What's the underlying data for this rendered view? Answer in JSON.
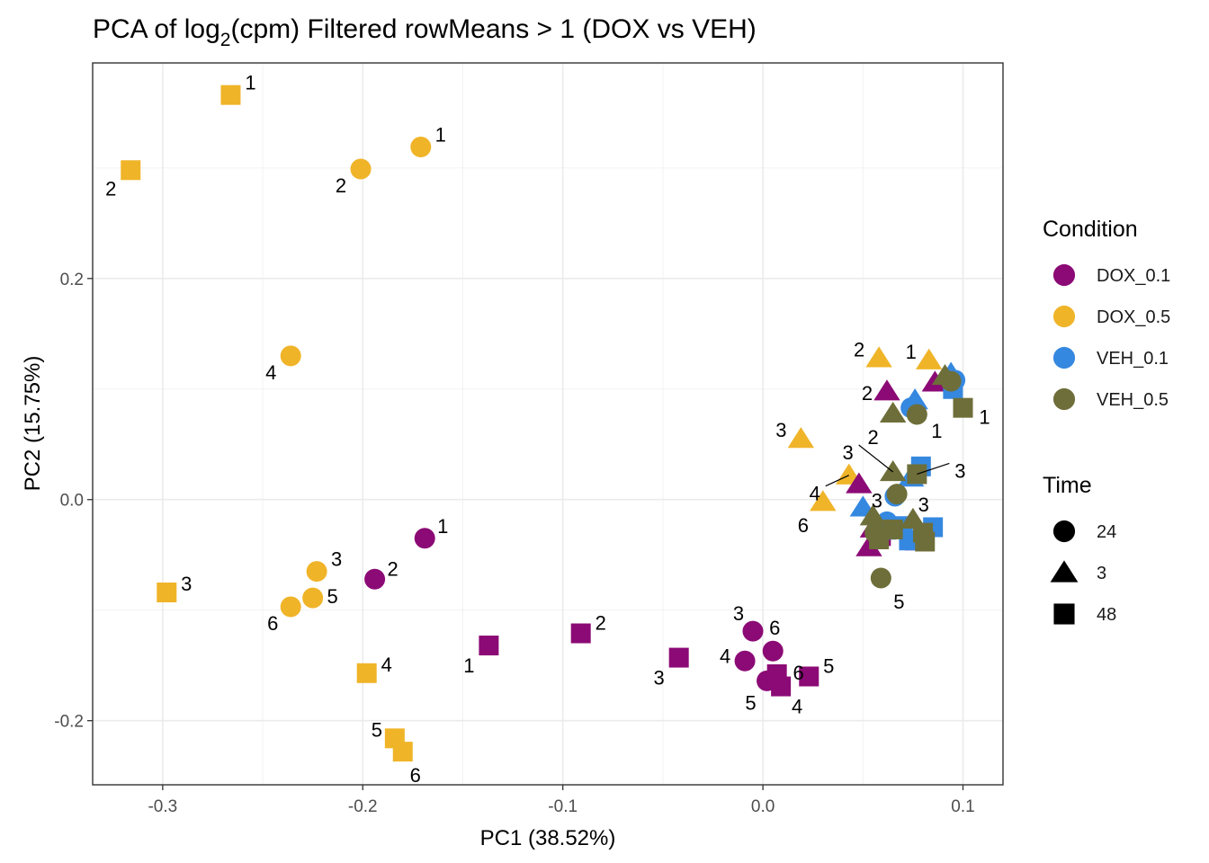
{
  "chart_data": {
    "type": "scatter",
    "title_main": "PCA of log",
    "title_sub": "2",
    "title_rest": "(cpm) Filtered rowMeans > 1 (DOX vs VEH)",
    "xlabel": "PC1 (38.52%)",
    "ylabel": "PC2 (15.75%)",
    "xlim": [
      -0.335,
      0.12
    ],
    "ylim": [
      -0.258,
      0.395
    ],
    "xticks": [
      -0.3,
      -0.2,
      -0.1,
      0.0,
      0.1
    ],
    "xtick_labels": [
      "-0.3",
      "-0.2",
      "-0.1",
      "0.0",
      "0.1"
    ],
    "yticks": [
      -0.2,
      0.0,
      0.2
    ],
    "ytick_labels": [
      "-0.2",
      "0.0",
      "0.2"
    ],
    "grid": true,
    "legend_placement": "right",
    "colors": {
      "DOX_0.1": "#8B0A75",
      "DOX_0.5": "#F0B429",
      "VEH_0.1": "#3588E0",
      "VEH_0.5": "#6E6E3A"
    },
    "legend": {
      "condition_title": "Condition",
      "conditions": [
        "DOX_0.1",
        "DOX_0.5",
        "VEH_0.1",
        "VEH_0.5"
      ],
      "time_title": "Time",
      "times": [
        {
          "label": "24",
          "shape": "circle"
        },
        {
          "label": "3",
          "shape": "triangle"
        },
        {
          "label": "48",
          "shape": "square"
        }
      ]
    },
    "points": [
      {
        "x": -0.266,
        "y": 0.366,
        "cond": "DOX_0.5",
        "time": "48",
        "label": "1",
        "ldx": 22,
        "ldy": -14
      },
      {
        "x": -0.316,
        "y": 0.298,
        "cond": "DOX_0.5",
        "time": "48",
        "label": "2",
        "ldx": -22,
        "ldy": 20
      },
      {
        "x": -0.171,
        "y": 0.319,
        "cond": "DOX_0.5",
        "time": "24",
        "label": "1",
        "ldx": 22,
        "ldy": -14
      },
      {
        "x": -0.201,
        "y": 0.299,
        "cond": "DOX_0.5",
        "time": "24",
        "label": "2",
        "ldx": -22,
        "ldy": 18
      },
      {
        "x": -0.236,
        "y": 0.13,
        "cond": "DOX_0.5",
        "time": "24",
        "label": "4",
        "ldx": -22,
        "ldy": 18
      },
      {
        "x": -0.223,
        "y": -0.065,
        "cond": "DOX_0.5",
        "time": "24",
        "label": "3",
        "ldx": 22,
        "ldy": -14
      },
      {
        "x": -0.225,
        "y": -0.089,
        "cond": "DOX_0.5",
        "time": "24",
        "label": "5",
        "ldx": 22,
        "ldy": -2
      },
      {
        "x": -0.236,
        "y": -0.097,
        "cond": "DOX_0.5",
        "time": "24",
        "label": "6",
        "ldx": -20,
        "ldy": 18
      },
      {
        "x": -0.298,
        "y": -0.084,
        "cond": "DOX_0.5",
        "time": "48",
        "label": "3",
        "ldx": 22,
        "ldy": -10
      },
      {
        "x": -0.198,
        "y": -0.157,
        "cond": "DOX_0.5",
        "time": "48",
        "label": "4",
        "ldx": 22,
        "ldy": -10
      },
      {
        "x": -0.184,
        "y": -0.216,
        "cond": "DOX_0.5",
        "time": "48",
        "label": "5",
        "ldx": -20,
        "ldy": -10
      },
      {
        "x": -0.18,
        "y": -0.228,
        "cond": "DOX_0.5",
        "time": "48",
        "label": "6",
        "ldx": 14,
        "ldy": 26
      },
      {
        "x": 0.058,
        "y": 0.128,
        "cond": "DOX_0.5",
        "time": "3",
        "label": "2",
        "ldx": -22,
        "ldy": -10
      },
      {
        "x": 0.083,
        "y": 0.126,
        "cond": "DOX_0.5",
        "time": "3",
        "label": "1",
        "ldx": -20,
        "ldy": -10
      },
      {
        "x": 0.019,
        "y": 0.055,
        "cond": "DOX_0.5",
        "time": "3",
        "label": "3",
        "ldx": -22,
        "ldy": -10
      },
      {
        "x": 0.043,
        "y": 0.022,
        "cond": "DOX_0.5",
        "time": "3",
        "label": "4",
        "ldx": -38,
        "ldy": 20
      },
      {
        "x": 0.03,
        "y": -0.002,
        "cond": "DOX_0.5",
        "time": "3",
        "label": "6",
        "ldx": -22,
        "ldy": 26
      },
      {
        "x": -0.169,
        "y": -0.035,
        "cond": "DOX_0.1",
        "time": "24",
        "label": "1",
        "ldx": 20,
        "ldy": -14
      },
      {
        "x": -0.194,
        "y": -0.072,
        "cond": "DOX_0.1",
        "time": "24",
        "label": "2",
        "ldx": 20,
        "ldy": -12
      },
      {
        "x": -0.137,
        "y": -0.132,
        "cond": "DOX_0.1",
        "time": "48",
        "label": "1",
        "ldx": -22,
        "ldy": 22
      },
      {
        "x": -0.091,
        "y": -0.121,
        "cond": "DOX_0.1",
        "time": "48",
        "label": "2",
        "ldx": 22,
        "ldy": -12
      },
      {
        "x": -0.042,
        "y": -0.143,
        "cond": "DOX_0.1",
        "time": "48",
        "label": "3",
        "ldx": -22,
        "ldy": 22
      },
      {
        "x": -0.005,
        "y": -0.119,
        "cond": "DOX_0.1",
        "time": "24",
        "label": "3",
        "ldx": -16,
        "ldy": -20
      },
      {
        "x": 0.005,
        "y": -0.137,
        "cond": "DOX_0.1",
        "time": "24",
        "label": "6",
        "ldx": 2,
        "ldy": -26
      },
      {
        "x": -0.009,
        "y": -0.146,
        "cond": "DOX_0.1",
        "time": "24",
        "label": "4",
        "ldx": -22,
        "ldy": -6
      },
      {
        "x": 0.002,
        "y": -0.164,
        "cond": "DOX_0.1",
        "time": "24",
        "label": "5",
        "ldx": -18,
        "ldy": 24
      },
      {
        "x": 0.007,
        "y": -0.158,
        "cond": "DOX_0.1",
        "time": "48",
        "label": "6",
        "ldx": 24,
        "ldy": -2
      },
      {
        "x": 0.023,
        "y": -0.16,
        "cond": "DOX_0.1",
        "time": "48",
        "label": "5",
        "ldx": 22,
        "ldy": -12
      },
      {
        "x": 0.009,
        "y": -0.169,
        "cond": "DOX_0.1",
        "time": "48",
        "label": "4",
        "ldx": 18,
        "ldy": 22
      },
      {
        "x": 0.062,
        "y": 0.098,
        "cond": "DOX_0.1",
        "time": "3",
        "label": "2",
        "ldx": -22,
        "ldy": 2
      },
      {
        "x": 0.048,
        "y": 0.014,
        "cond": "DOX_0.1",
        "time": "3",
        "label": "3",
        "ldx": 20,
        "ldy": 18
      },
      {
        "x": 0.086,
        "y": 0.106,
        "cond": "DOX_0.1",
        "time": "3",
        "label": "",
        "ldx": 0,
        "ldy": 0
      },
      {
        "x": 0.055,
        "y": -0.026,
        "cond": "DOX_0.1",
        "time": "3",
        "label": "",
        "ldx": 0,
        "ldy": 0
      },
      {
        "x": 0.053,
        "y": -0.043,
        "cond": "DOX_0.1",
        "time": "3",
        "label": "",
        "ldx": 0,
        "ldy": 0
      },
      {
        "x": 0.059,
        "y": -0.033,
        "cond": "DOX_0.1",
        "time": "48",
        "label": "",
        "ldx": 0,
        "ldy": 0
      },
      {
        "x": 0.076,
        "y": -0.037,
        "cond": "DOX_0.1",
        "time": "48",
        "label": "",
        "ldx": 0,
        "ldy": 0
      },
      {
        "x": 0.096,
        "y": 0.108,
        "cond": "VEH_0.1",
        "time": "24",
        "label": "",
        "ldx": 0,
        "ldy": 0
      },
      {
        "x": 0.094,
        "y": 0.114,
        "cond": "VEH_0.1",
        "time": "3",
        "label": "",
        "ldx": 0,
        "ldy": 0
      },
      {
        "x": 0.095,
        "y": 0.1,
        "cond": "VEH_0.1",
        "time": "48",
        "label": "",
        "ldx": 0,
        "ldy": 0
      },
      {
        "x": 0.076,
        "y": 0.09,
        "cond": "VEH_0.1",
        "time": "3",
        "label": "",
        "ldx": 0,
        "ldy": 0
      },
      {
        "x": 0.074,
        "y": 0.083,
        "cond": "VEH_0.1",
        "time": "24",
        "label": "",
        "ldx": 0,
        "ldy": 0
      },
      {
        "x": 0.079,
        "y": 0.03,
        "cond": "VEH_0.1",
        "time": "48",
        "label": "",
        "ldx": 0,
        "ldy": 0
      },
      {
        "x": 0.074,
        "y": 0.02,
        "cond": "VEH_0.1",
        "time": "3",
        "label": "3",
        "ldx": 14,
        "ldy": 30
      },
      {
        "x": 0.066,
        "y": 0.003,
        "cond": "VEH_0.1",
        "time": "24",
        "label": "",
        "ldx": 0,
        "ldy": 0
      },
      {
        "x": 0.05,
        "y": -0.007,
        "cond": "VEH_0.1",
        "time": "3",
        "label": "",
        "ldx": 0,
        "ldy": 0
      },
      {
        "x": 0.062,
        "y": -0.02,
        "cond": "VEH_0.1",
        "time": "24",
        "label": "",
        "ldx": 0,
        "ldy": 0
      },
      {
        "x": 0.07,
        "y": -0.024,
        "cond": "VEH_0.1",
        "time": "48",
        "label": "",
        "ldx": 0,
        "ldy": 0
      },
      {
        "x": 0.085,
        "y": -0.025,
        "cond": "VEH_0.1",
        "time": "48",
        "label": "",
        "ldx": 0,
        "ldy": 0
      },
      {
        "x": 0.073,
        "y": -0.037,
        "cond": "VEH_0.1",
        "time": "48",
        "label": "",
        "ldx": 0,
        "ldy": 0
      },
      {
        "x": 0.06,
        "y": -0.028,
        "cond": "VEH_0.1",
        "time": "3",
        "label": "",
        "ldx": 0,
        "ldy": 0
      },
      {
        "x": 0.091,
        "y": 0.112,
        "cond": "VEH_0.5",
        "time": "3",
        "label": "",
        "ldx": 0,
        "ldy": 0
      },
      {
        "x": 0.094,
        "y": 0.107,
        "cond": "VEH_0.5",
        "time": "24",
        "label": "",
        "ldx": 0,
        "ldy": 0
      },
      {
        "x": 0.1,
        "y": 0.083,
        "cond": "VEH_0.5",
        "time": "48",
        "label": "1",
        "ldx": 24,
        "ldy": 10
      },
      {
        "x": 0.077,
        "y": 0.077,
        "cond": "VEH_0.5",
        "time": "24",
        "label": "1",
        "ldx": 22,
        "ldy": 18
      },
      {
        "x": 0.065,
        "y": 0.078,
        "cond": "VEH_0.5",
        "time": "3",
        "label": "2",
        "ldx": -22,
        "ldy": 26
      },
      {
        "x": 0.065,
        "y": 0.025,
        "cond": "VEH_0.5",
        "time": "3",
        "label": "3",
        "ldx": -50,
        "ldy": -22
      },
      {
        "x": 0.077,
        "y": 0.023,
        "cond": "VEH_0.5",
        "time": "48",
        "label": "3",
        "ldx": 48,
        "ldy": -4
      },
      {
        "x": 0.067,
        "y": 0.005,
        "cond": "VEH_0.5",
        "time": "24",
        "label": "",
        "ldx": 0,
        "ldy": 0
      },
      {
        "x": 0.055,
        "y": -0.015,
        "cond": "VEH_0.5",
        "time": "3",
        "label": "",
        "ldx": 0,
        "ldy": 0
      },
      {
        "x": 0.075,
        "y": -0.018,
        "cond": "VEH_0.5",
        "time": "3",
        "label": "",
        "ldx": 0,
        "ldy": 0
      },
      {
        "x": 0.065,
        "y": -0.027,
        "cond": "VEH_0.5",
        "time": "48",
        "label": "",
        "ldx": 0,
        "ldy": 0
      },
      {
        "x": 0.08,
        "y": -0.03,
        "cond": "VEH_0.5",
        "time": "48",
        "label": "",
        "ldx": 0,
        "ldy": 0
      },
      {
        "x": 0.056,
        "y": -0.03,
        "cond": "VEH_0.5",
        "time": "24",
        "label": "",
        "ldx": 0,
        "ldy": 0
      },
      {
        "x": 0.058,
        "y": -0.036,
        "cond": "VEH_0.5",
        "time": "48",
        "label": "",
        "ldx": 0,
        "ldy": 0
      },
      {
        "x": 0.081,
        "y": -0.038,
        "cond": "VEH_0.5",
        "time": "48",
        "label": "",
        "ldx": 0,
        "ldy": 0
      },
      {
        "x": 0.059,
        "y": -0.071,
        "cond": "VEH_0.5",
        "time": "24",
        "label": "5",
        "ldx": 20,
        "ldy": 26
      }
    ]
  }
}
